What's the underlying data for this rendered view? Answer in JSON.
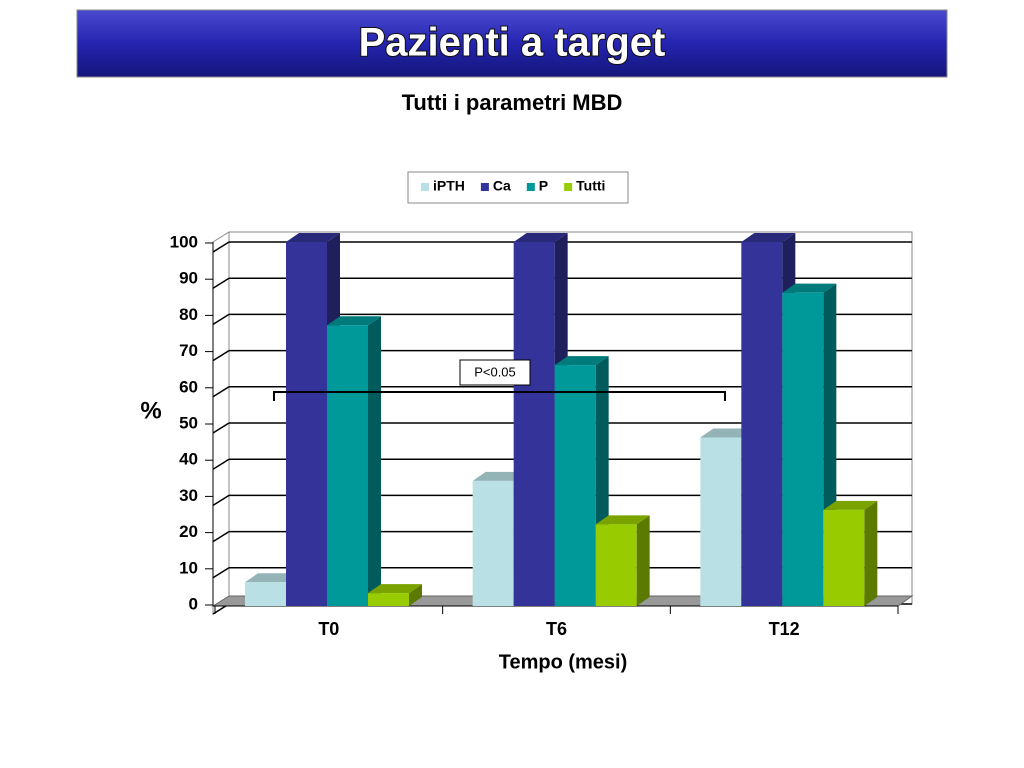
{
  "chart_data": {
    "type": "bar",
    "title": "Pazienti a target",
    "subtitle": "Tutti i parametri MBD",
    "categories": [
      "T0",
      "T6",
      "T12"
    ],
    "series": [
      {
        "name": "iPTH",
        "color": "#b9e0e5",
        "values": [
          6,
          34,
          46
        ]
      },
      {
        "name": "Ca",
        "color": "#333399",
        "values": [
          100,
          100,
          100
        ]
      },
      {
        "name": "P",
        "color": "#009999",
        "values": [
          77,
          66,
          86
        ]
      },
      {
        "name": "Tutti",
        "color": "#99cc00",
        "values": [
          3,
          22,
          26
        ]
      }
    ],
    "ylim": [
      0,
      100
    ],
    "yticks": [
      0,
      10,
      20,
      30,
      40,
      50,
      60,
      70,
      80,
      90,
      100
    ],
    "grid": true,
    "y_label": "%",
    "x_label": "Tempo (mesi)",
    "annotation": "P<0.05",
    "legend": "top"
  }
}
